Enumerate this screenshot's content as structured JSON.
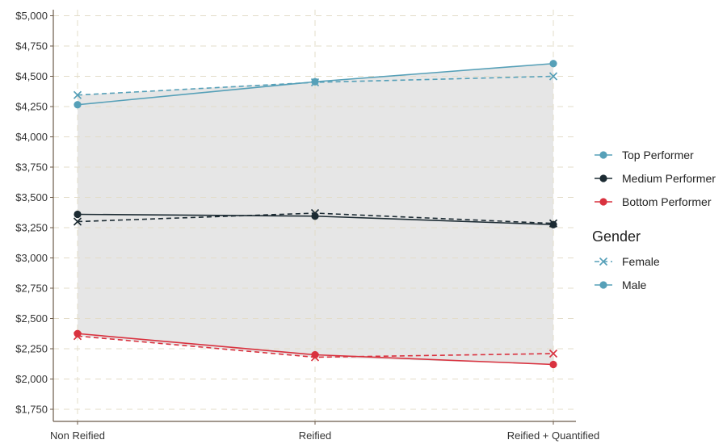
{
  "chart_data": {
    "type": "line",
    "categories": [
      "Non Reified",
      "Reified",
      "Reified + Quantified"
    ],
    "ylim": [
      1650,
      5050
    ],
    "y_ticks": [
      1750,
      2000,
      2250,
      2500,
      2750,
      3000,
      3250,
      3500,
      3750,
      4000,
      4250,
      4500,
      4750,
      5000
    ],
    "y_tick_labels": [
      "$1,750",
      "$2,000",
      "$2,250",
      "$2,500",
      "$2,750",
      "$3,000",
      "$3,250",
      "$3,500",
      "$3,750",
      "$4,000",
      "$4,250",
      "$4,500",
      "$4,750",
      "$5,000"
    ],
    "grid": true,
    "legend_position": "right",
    "band": {
      "upper": [
        4345,
        4455,
        4605
      ],
      "lower": [
        2355,
        2180,
        2120
      ],
      "color": "#e6e6e6"
    },
    "series": [
      {
        "name": "Top Performer",
        "gender": "Female",
        "color": "#56a0b8",
        "dash": true,
        "marker": "x",
        "values": [
          4345,
          4450,
          4500
        ]
      },
      {
        "name": "Top Performer",
        "gender": "Male",
        "color": "#56a0b8",
        "dash": false,
        "marker": "circle",
        "values": [
          4265,
          4455,
          4605
        ]
      },
      {
        "name": "Medium Performer",
        "gender": "Female",
        "color": "#1c2b33",
        "dash": true,
        "marker": "x",
        "values": [
          3300,
          3370,
          3285
        ]
      },
      {
        "name": "Medium Performer",
        "gender": "Male",
        "color": "#1c2b33",
        "dash": false,
        "marker": "circle",
        "values": [
          3360,
          3345,
          3275
        ]
      },
      {
        "name": "Bottom Performer",
        "gender": "Female",
        "color": "#d9323f",
        "dash": true,
        "marker": "x",
        "values": [
          2355,
          2180,
          2210
        ]
      },
      {
        "name": "Bottom Performer",
        "gender": "Male",
        "color": "#d9323f",
        "dash": false,
        "marker": "circle",
        "values": [
          2375,
          2200,
          2120
        ]
      }
    ],
    "legend": {
      "performers": [
        {
          "label": "Top Performer",
          "color": "#56a0b8"
        },
        {
          "label": "Medium Performer",
          "color": "#1c2b33"
        },
        {
          "label": "Bottom Performer",
          "color": "#d9323f"
        }
      ],
      "gender_title": "Gender",
      "genders": [
        {
          "label": "Female",
          "marker": "x",
          "dash": true,
          "color": "#56a0b8"
        },
        {
          "label": "Male",
          "marker": "circle",
          "dash": false,
          "color": "#56a0b8"
        }
      ]
    }
  }
}
